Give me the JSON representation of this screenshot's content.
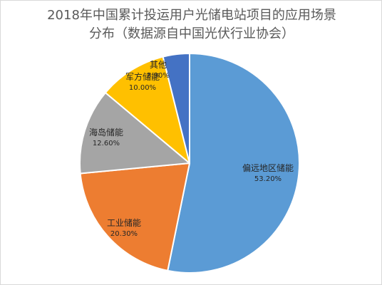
{
  "chart_data": {
    "type": "pie",
    "title_line1": "2018年中国累计投运用户光储电站项目的应用场景",
    "title_line2": "分布（数据源自中国光伏行业协会）",
    "slices": [
      {
        "name": "偏远地区储能",
        "value": 53.2,
        "label": "53.20%",
        "color": "#5b9bd5"
      },
      {
        "name": "工业储能",
        "value": 20.3,
        "label": "20.30%",
        "color": "#ed7d31"
      },
      {
        "name": "海岛储能",
        "value": 12.6,
        "label": "12.60%",
        "color": "#a5a5a5"
      },
      {
        "name": "军方储能",
        "value": 10.0,
        "label": "10.00%",
        "color": "#ffc000"
      },
      {
        "name": "其他",
        "value": 3.9,
        "label": "3.90%",
        "color": "#4472c4"
      }
    ],
    "legend": "none"
  }
}
